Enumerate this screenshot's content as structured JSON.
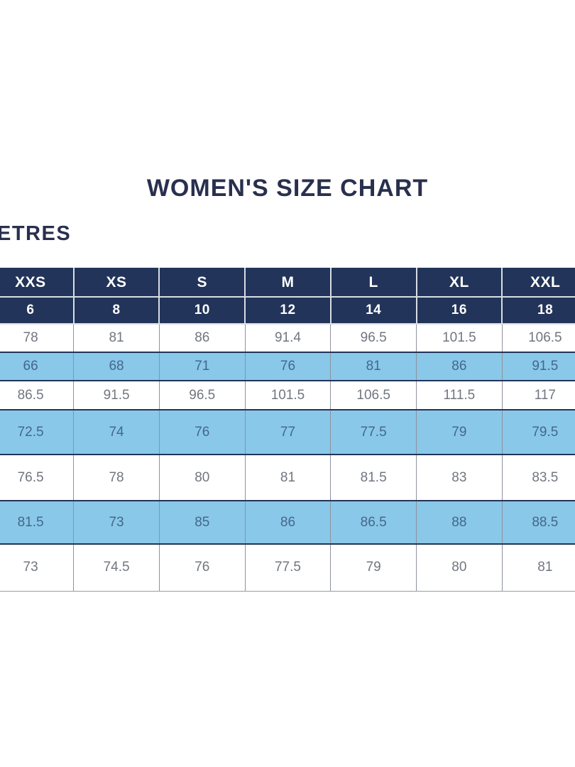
{
  "page": {
    "title": "WOMEN'S SIZE CHART",
    "unit_label": "ETRES"
  },
  "colors": {
    "header_navy": "#223459",
    "title_navy": "#29304e",
    "highlight_row_blue": "#89c8e9",
    "white_row_text": "#71767f",
    "blue_row_text": "#44678a",
    "header_text": "#ffffff"
  },
  "chart_data": {
    "type": "table",
    "title": "WOMEN'S SIZE CHART",
    "unit_label_visible": "ETRES",
    "size_labels": [
      "XXS",
      "XS",
      "S",
      "M",
      "L",
      "XL",
      "XXL"
    ],
    "numeric_sizes": [
      6,
      8,
      10,
      12,
      14,
      16,
      18
    ],
    "rows": [
      {
        "highlight": false,
        "values": [
          78,
          81,
          86,
          91.4,
          96.5,
          101.5,
          106.5
        ]
      },
      {
        "highlight": true,
        "values": [
          66,
          68,
          71,
          76,
          81,
          86,
          91.5
        ]
      },
      {
        "highlight": false,
        "values": [
          86.5,
          91.5,
          96.5,
          101.5,
          106.5,
          111.5,
          117
        ]
      },
      {
        "highlight": true,
        "values": [
          72.5,
          74,
          76,
          77,
          77.5,
          79,
          79.5
        ]
      },
      {
        "highlight": false,
        "values": [
          76.5,
          78,
          80,
          81,
          81.5,
          83,
          83.5
        ]
      },
      {
        "highlight": true,
        "values": [
          81.5,
          73,
          85,
          86,
          86.5,
          88,
          88.5
        ]
      },
      {
        "highlight": false,
        "values": [
          73,
          74.5,
          76,
          77.5,
          79,
          80,
          81
        ]
      }
    ]
  }
}
